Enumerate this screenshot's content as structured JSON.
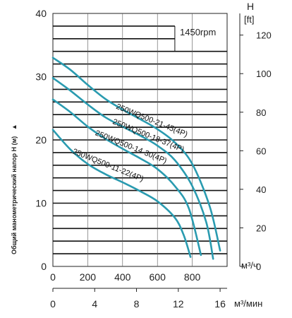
{
  "chart_data": {
    "type": "line",
    "ylabel": "Общий манометрический напор H (м)",
    "ylabel_arrow": "▲",
    "ylim": [
      0,
      40
    ],
    "yticks": [
      0,
      10,
      20,
      30,
      40
    ],
    "xlim": [
      0,
      1000
    ],
    "xticks": [
      0,
      200,
      400,
      600,
      800
    ],
    "xunit": "м³/ч",
    "x2lim": [
      0,
      16.67
    ],
    "x2ticks": [
      0,
      4,
      8,
      12,
      16
    ],
    "x2unit": "м³/мин",
    "right_axis": {
      "title_line1": "H",
      "title_line2": "[ft]",
      "ticks": [
        0,
        20,
        40,
        60,
        80,
        100,
        120
      ]
    },
    "annotation": "1450rpm",
    "curve_color": "#2a9bb0",
    "grid": true,
    "series": [
      {
        "name": "250WQ500-21-45(4P)",
        "x": [
          0,
          100,
          200,
          300,
          400,
          500,
          600,
          700,
          800,
          900,
          960
        ],
        "y": [
          33,
          31.1,
          28.7,
          26.5,
          24.8,
          23.3,
          21.7,
          19.6,
          16.2,
          9.5,
          2.5
        ]
      },
      {
        "name": "250WQ500-18-37(4P)",
        "x": [
          0,
          100,
          200,
          300,
          400,
          500,
          600,
          700,
          800,
          880,
          920
        ],
        "y": [
          29.8,
          27.8,
          25.6,
          23.6,
          22.1,
          20.7,
          19.1,
          16.8,
          12.7,
          7,
          1.2
        ]
      },
      {
        "name": "250WQ500-14-30(4P)",
        "x": [
          0,
          100,
          200,
          300,
          400,
          500,
          600,
          700,
          780,
          850
        ],
        "y": [
          26.4,
          24.4,
          22.1,
          20.2,
          18.6,
          17.1,
          15.4,
          12.7,
          9.2,
          1.8
        ]
      },
      {
        "name": "250WQ500-11-22(4P)",
        "x": [
          0,
          100,
          200,
          300,
          400,
          500,
          600,
          700,
          750,
          790
        ],
        "y": [
          21.6,
          18.5,
          16.2,
          14.6,
          13.3,
          11.9,
          10.3,
          7.7,
          5,
          1.5
        ]
      }
    ]
  }
}
